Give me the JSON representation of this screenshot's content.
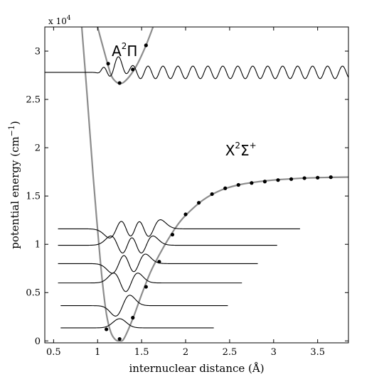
{
  "chart_data": {
    "type": "line",
    "xlabel": "internuclear distance (Å)",
    "ylabel_main": "potential energy (cm",
    "ylabel_sup": "−1",
    "ylabel_end": ")",
    "y_multiplier": "x 10",
    "y_multiplier_exp": "4",
    "xlim": [
      0.4,
      3.85
    ],
    "ylim": [
      -200,
      32500
    ],
    "xticks": [
      0.5,
      1,
      1.5,
      2,
      2.5,
      3,
      3.5
    ],
    "xtick_labels": [
      "0.5",
      "1",
      "1.5",
      "2",
      "2.5",
      "3",
      "3.5"
    ],
    "yticks": [
      0,
      5000,
      10000,
      15000,
      20000,
      25000,
      30000
    ],
    "ytick_labels": [
      "0",
      "0.5",
      "1",
      "1.5",
      "2",
      "2.5",
      "3"
    ],
    "grid": false,
    "curve_color": "#8c8c8c",
    "marker_color": "#000000",
    "wave_color": "#000000",
    "states": [
      {
        "name": "X",
        "sup": "2",
        "tail": "Σ",
        "tail_sup": "+",
        "label_at": [
          2.45,
          19200
        ],
        "points": [
          [
            1.1,
            1200
          ],
          [
            1.25,
            200
          ],
          [
            1.4,
            2400
          ],
          [
            1.55,
            5600
          ],
          [
            1.7,
            8200
          ],
          [
            1.85,
            11000
          ],
          [
            2.0,
            13100
          ],
          [
            2.15,
            14300
          ],
          [
            2.3,
            15200
          ],
          [
            2.45,
            15800
          ],
          [
            2.6,
            16150
          ],
          [
            2.75,
            16350
          ],
          [
            2.9,
            16500
          ],
          [
            3.05,
            16650
          ],
          [
            3.2,
            16750
          ],
          [
            3.35,
            16850
          ],
          [
            3.5,
            16900
          ],
          [
            3.65,
            16950
          ]
        ],
        "curve": [
          [
            0.82,
            32500
          ],
          [
            0.88,
            25500
          ],
          [
            0.95,
            17000
          ],
          [
            1.0,
            11500
          ],
          [
            1.05,
            6500
          ],
          [
            1.1,
            2800
          ],
          [
            1.15,
            900
          ],
          [
            1.2,
            150
          ],
          [
            1.25,
            0
          ],
          [
            1.3,
            250
          ],
          [
            1.4,
            2300
          ],
          [
            1.5,
            4800
          ],
          [
            1.6,
            7100
          ],
          [
            1.7,
            8900
          ],
          [
            1.8,
            10500
          ],
          [
            1.9,
            11900
          ],
          [
            2.0,
            13000
          ],
          [
            2.2,
            14600
          ],
          [
            2.4,
            15600
          ],
          [
            2.6,
            16150
          ],
          [
            2.8,
            16450
          ],
          [
            3.0,
            16650
          ],
          [
            3.2,
            16780
          ],
          [
            3.4,
            16870
          ],
          [
            3.6,
            16920
          ],
          [
            3.85,
            16960
          ]
        ],
        "wavefunctions": [
          {
            "v": 0,
            "energy": 1350,
            "x_start": 0.58,
            "x_end": 2.32
          },
          {
            "v": 1,
            "energy": 3650,
            "x_start": 0.58,
            "x_end": 2.48
          },
          {
            "v": 2,
            "energy": 6000,
            "x_start": 0.55,
            "x_end": 2.64
          },
          {
            "v": 3,
            "energy": 8000,
            "x_start": 0.55,
            "x_end": 2.82
          },
          {
            "v": 4,
            "energy": 9900,
            "x_start": 0.55,
            "x_end": 3.04
          },
          {
            "v": 5,
            "energy": 11600,
            "x_start": 0.55,
            "x_end": 3.3
          }
        ]
      },
      {
        "name": "A",
        "sup": "2",
        "tail": "Π",
        "tail_sup": "",
        "label_at": [
          1.16,
          29500
        ],
        "points": [
          [
            1.12,
            28700
          ],
          [
            1.25,
            26700
          ],
          [
            1.4,
            28100
          ],
          [
            1.55,
            30600
          ]
        ],
        "curve": [
          [
            1.0,
            32500
          ],
          [
            1.08,
            29800
          ],
          [
            1.15,
            27600
          ],
          [
            1.2,
            26900
          ],
          [
            1.25,
            26650
          ],
          [
            1.3,
            26800
          ],
          [
            1.38,
            27600
          ],
          [
            1.46,
            28800
          ],
          [
            1.55,
            30600
          ],
          [
            1.63,
            32500
          ]
        ],
        "wavefunctions": [
          {
            "v": 0,
            "energy": 27800,
            "x_start": 0.4,
            "x_end": 3.85
          }
        ]
      }
    ]
  }
}
